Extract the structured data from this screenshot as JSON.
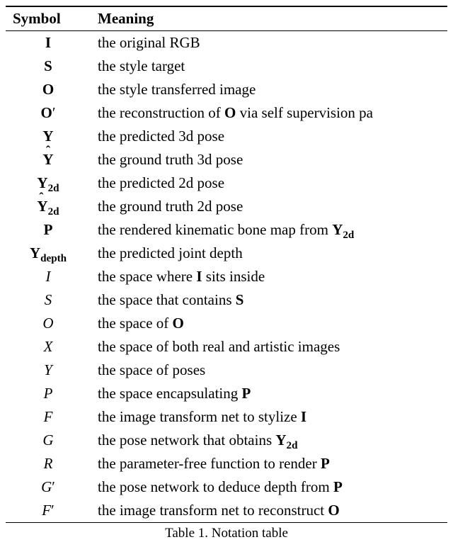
{
  "table": {
    "headers": {
      "symbol": "Symbol",
      "meaning": "Meaning"
    },
    "caption": "Table 1. Notation table",
    "rows": [
      {
        "sym_html": "<span class='bold'>I</span>",
        "meaning_html": "the original RGB"
      },
      {
        "sym_html": "<span class='bold'>S</span>",
        "meaning_html": "the style target"
      },
      {
        "sym_html": "<span class='bold'>O</span>",
        "meaning_html": "the style transferred image"
      },
      {
        "sym_html": "<span class='bold'>O</span><span class='prime'>′</span>",
        "meaning_html": "the reconstruction of <span class='bold'>O</span> via self supervision pa"
      },
      {
        "sym_html": "<span class='bold'>Y</span>",
        "meaning_html": "the predicted 3d pose"
      },
      {
        "sym_html": "<span class='bold hat'>Y</span>",
        "meaning_html": "the ground truth 3d pose"
      },
      {
        "sym_html": "<span class='bold'>Y</span><span class='sub'>2d</span>",
        "meaning_html": "the predicted 2d pose"
      },
      {
        "sym_html": "<span class='bold hat hat-narrow'>Y</span><span class='sub'>2d</span>",
        "meaning_html": "the ground truth 2d pose"
      },
      {
        "sym_html": "<span class='bold'>P</span>",
        "meaning_html": "the rendered kinematic bone map from <span class='bold'>Y</span><span class='sub'>2d</span>"
      },
      {
        "sym_html": "<span class='bold'>Y</span><span class='sub'>depth</span>",
        "meaning_html": "the predicted joint depth"
      },
      {
        "sym_html": "<span class='cal'>I</span>",
        "meaning_html": "the space where <span class='bold'>I</span> sits inside"
      },
      {
        "sym_html": "<span class='cal'>S</span>",
        "meaning_html": "the space that contains <span class='bold'>S</span>"
      },
      {
        "sym_html": "<span class='cal'>O</span>",
        "meaning_html": "the space of <span class='bold'>O</span>"
      },
      {
        "sym_html": "<span class='cal'>X</span>",
        "meaning_html": "the space of both real and artistic images"
      },
      {
        "sym_html": "<span class='cal'>Y</span>",
        "meaning_html": "the space of poses"
      },
      {
        "sym_html": "<span class='cal'>P</span>",
        "meaning_html": "the space encapsulating <span class='bold'>P</span>"
      },
      {
        "sym_html": "<span class='cal'>F</span>",
        "meaning_html": "the image transform net to stylize <span class='bold'>I</span>"
      },
      {
        "sym_html": "<span class='cal'>G</span>",
        "meaning_html": "the pose network that obtains <span class='bold'>Y</span><span class='sub'>2d</span>"
      },
      {
        "sym_html": "<span class='cal'>R</span>",
        "meaning_html": "the parameter-free function to render <span class='bold'>P</span>"
      },
      {
        "sym_html": "<span class='cal'>G</span><span class='prime'>′</span>",
        "meaning_html": "the pose network to deduce depth from <span class='bold'>P</span>"
      },
      {
        "sym_html": "<span class='cal'>F</span><span class='prime'>′</span>",
        "meaning_html": "the image transform net to reconstruct <span class='bold'>O</span>"
      }
    ]
  }
}
